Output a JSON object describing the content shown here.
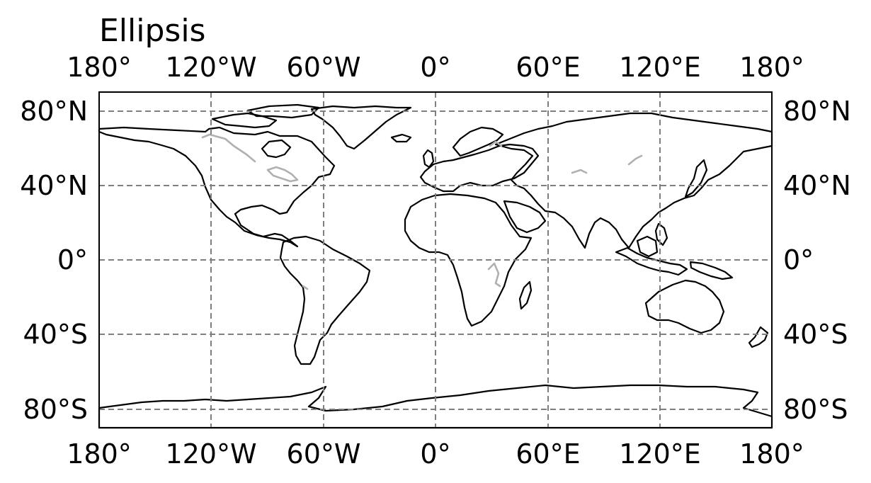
{
  "figure": {
    "title": "Ellipsis"
  },
  "map": {
    "projection": "PlateCarree",
    "lon_range": [
      -180,
      180
    ],
    "lat_range": [
      -90,
      90
    ],
    "coastline_color": "#000000",
    "lake_color": "#b0b0b0",
    "grid": {
      "enabled": true,
      "color": "#7f7f7f",
      "style": "dashed",
      "longitudes": [
        -180,
        -120,
        -60,
        0,
        60,
        120,
        180
      ],
      "latitudes": [
        80,
        40,
        0,
        -40,
        -80
      ]
    },
    "lon_labels": [
      "180°",
      "120°W",
      "60°W",
      "0°",
      "60°E",
      "120°E",
      "180°"
    ],
    "lat_labels": [
      "80°N",
      "40°N",
      "0°",
      "40°S",
      "80°S"
    ],
    "tick_label_sides": [
      "top",
      "bottom",
      "left",
      "right"
    ]
  }
}
